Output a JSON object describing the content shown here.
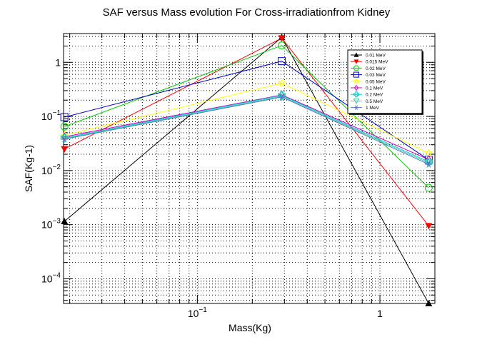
{
  "chart_data": {
    "type": "line",
    "title": "SAF versus Mass evolution For Cross-irradiationfrom Kidney",
    "xlabel": "Mass(Kg)",
    "ylabel": "SAF(Kg-1)",
    "x_scale": "log",
    "y_scale": "log",
    "xlim": [
      0.0185,
      2.0
    ],
    "ylim": [
      3.5e-05,
      3.4
    ],
    "grid": true,
    "legend_position": "top-right",
    "x_ticks": [
      {
        "value": 0.1,
        "base": "10",
        "exp": "−1"
      },
      {
        "value": 1,
        "label": "1"
      }
    ],
    "y_ticks": [
      {
        "value": 0.0001,
        "base": "10",
        "exp": "−4"
      },
      {
        "value": 0.001,
        "base": "10",
        "exp": "−3"
      },
      {
        "value": 0.01,
        "base": "10",
        "exp": "−2"
      },
      {
        "value": 0.1,
        "base": "10",
        "exp": "−1"
      },
      {
        "value": 1,
        "label": "1"
      }
    ],
    "x": [
      0.0187,
      0.29,
      1.85
    ],
    "series": [
      {
        "name": "0.01 MeV",
        "color": "#000000",
        "marker": "triangle-up",
        "values": [
          0.00115,
          2.9,
          3.5e-05
        ]
      },
      {
        "name": "0.015 MeV",
        "color": "#ff0000",
        "marker": "triangle-down",
        "values": [
          0.025,
          2.8,
          0.00095
        ]
      },
      {
        "name": "0.02 MeV",
        "color": "#00cc00",
        "marker": "circle-open",
        "values": [
          0.065,
          2.05,
          0.0048
        ]
      },
      {
        "name": "0.03 MeV",
        "color": "#0000cc",
        "marker": "square-open",
        "values": [
          0.097,
          1.05,
          0.0158
        ]
      },
      {
        "name": "0.05 MeV",
        "color": "#ffff00",
        "marker": "star",
        "values": [
          0.045,
          0.41,
          0.021
        ]
      },
      {
        "name": "0.1 MeV",
        "color": "#cc00cc",
        "marker": "diamond-open",
        "values": [
          0.042,
          0.25,
          0.016
        ]
      },
      {
        "name": "0.2 MeV",
        "color": "#00cccc",
        "marker": "cross-open",
        "values": [
          0.04,
          0.245,
          0.0145
        ]
      },
      {
        "name": "0.5 MeV",
        "color": "#44ccaa",
        "marker": "triangle-down-open",
        "values": [
          0.039,
          0.235,
          0.0138
        ]
      },
      {
        "name": "1 MeV",
        "color": "#5577cc",
        "marker": "asterisk",
        "values": [
          0.038,
          0.228,
          0.013
        ]
      }
    ]
  }
}
